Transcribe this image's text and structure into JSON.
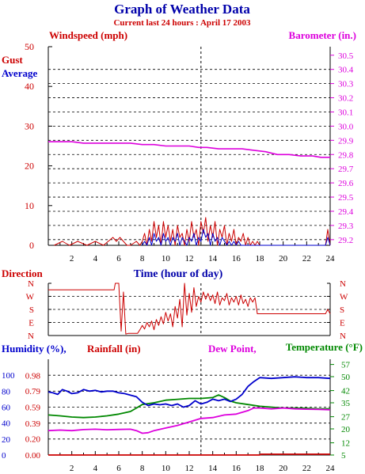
{
  "header": {
    "title": "Graph of Weather Data",
    "subtitle": "Current last 24 hours : April 17 2003"
  },
  "colors": {
    "title": "#0000aa",
    "subtitle": "#cc0000",
    "wind": "#cc0000",
    "avg": "#0000cc",
    "baro": "#dd00dd",
    "dir": "#cc0000",
    "humidity": "#0000cc",
    "rain": "#cc0000",
    "dew": "#dd00dd",
    "temp": "#008800",
    "grid": "#000000"
  },
  "chart_data": [
    {
      "id": "wind",
      "type": "line",
      "left_label": "Windspeed (mph)",
      "right_label": "Barometer (in.)",
      "legend": [
        "Gust",
        "Average"
      ],
      "xlabel": "Time (hour of day)",
      "x_ticks": [
        2,
        4,
        6,
        8,
        10,
        12,
        14,
        16,
        18,
        20,
        22,
        24
      ],
      "xlim": [
        0,
        24
      ],
      "y_left_ticks": [
        0,
        10,
        20,
        30,
        40,
        50
      ],
      "y_left_lim": [
        0,
        50
      ],
      "y_right_ticks": [
        "29.2",
        "29.3",
        "29.4",
        "29.5",
        "29.6",
        "29.7",
        "29.8",
        "29.9",
        "30.0",
        "30.1",
        "30.2",
        "30.3",
        "30.4",
        "30.5"
      ],
      "y_right_lim": [
        29.16,
        30.56
      ],
      "grid": true,
      "marker_x": 13,
      "series": [
        {
          "name": "Gust",
          "axis": "left",
          "x": [
            0.5,
            1.2,
            1.8,
            2.5,
            3.3,
            4.0,
            4.7,
            5.5,
            5.8,
            6.1,
            6.4,
            6.7,
            7.0,
            7.5,
            7.8,
            8.0,
            8.2,
            8.4,
            8.6,
            8.8,
            9.0,
            9.2,
            9.4,
            9.6,
            9.8,
            10.0,
            10.2,
            10.4,
            10.6,
            10.8,
            11.0,
            11.2,
            11.4,
            11.6,
            11.8,
            12.0,
            12.2,
            12.4,
            12.6,
            12.8,
            13.0,
            13.2,
            13.4,
            13.6,
            13.8,
            14.0,
            14.2,
            14.4,
            14.6,
            14.8,
            15.0,
            15.2,
            15.4,
            15.6,
            15.8,
            16.0,
            16.2,
            16.4,
            16.6,
            16.8,
            17.0,
            17.2,
            17.4,
            17.6,
            17.8,
            18.0,
            23.6,
            23.8,
            24.0
          ],
          "values": [
            0,
            1,
            0,
            1,
            0,
            1,
            0,
            2,
            1,
            2,
            1,
            0,
            0,
            1,
            0,
            1,
            3,
            0,
            4,
            1,
            6,
            2,
            5,
            0,
            6,
            2,
            5,
            1,
            4,
            0,
            5,
            2,
            3,
            0,
            4,
            1,
            6,
            2,
            4,
            0,
            6,
            3,
            7,
            1,
            5,
            2,
            6,
            0,
            4,
            2,
            5,
            0,
            3,
            1,
            4,
            0,
            2,
            1,
            3,
            0,
            2,
            0,
            1,
            0,
            1,
            0,
            0,
            4,
            0
          ]
        },
        {
          "name": "Average",
          "axis": "left",
          "x": [
            8.0,
            8.2,
            8.4,
            8.6,
            8.8,
            9.0,
            9.2,
            9.4,
            9.6,
            9.8,
            10.0,
            10.2,
            10.4,
            10.6,
            10.8,
            11.0,
            11.2,
            11.4,
            11.6,
            11.8,
            12.0,
            12.2,
            12.4,
            12.6,
            12.8,
            13.0,
            13.2,
            13.4,
            13.6,
            13.8,
            14.0,
            14.2,
            14.4,
            14.6,
            14.8,
            15.0,
            15.2,
            15.4,
            15.6,
            15.8,
            16.0,
            16.2,
            16.4,
            16.6,
            17.0,
            23.6,
            23.8,
            24.0
          ],
          "values": [
            0,
            1,
            0,
            2,
            0,
            3,
            1,
            2,
            0,
            3,
            1,
            2,
            0,
            2,
            1,
            3,
            0,
            2,
            1,
            0,
            2,
            1,
            3,
            0,
            2,
            1,
            4,
            2,
            3,
            0,
            3,
            1,
            2,
            0,
            2,
            1,
            0,
            1,
            0,
            1,
            0,
            1,
            0,
            0,
            0,
            0,
            2,
            0
          ]
        },
        {
          "name": "Barometer",
          "axis": "right",
          "x": [
            0,
            1,
            2,
            3,
            4,
            5,
            6,
            7,
            8,
            9,
            10,
            11,
            12,
            12.8,
            13.5,
            14.5,
            15.5,
            16.5,
            17.5,
            18.5,
            19.5,
            20.5,
            21.5,
            22.5,
            23.2,
            24
          ],
          "values": [
            29.89,
            29.89,
            29.89,
            29.88,
            29.88,
            29.88,
            29.88,
            29.88,
            29.87,
            29.87,
            29.86,
            29.86,
            29.86,
            29.85,
            29.85,
            29.84,
            29.84,
            29.84,
            29.83,
            29.82,
            29.8,
            29.8,
            29.79,
            29.79,
            29.78,
            29.78
          ]
        }
      ]
    },
    {
      "id": "direction",
      "type": "line",
      "left_label": "Direction",
      "x_ticks": [
        2,
        4,
        6,
        8,
        10,
        12,
        14,
        16,
        18,
        20,
        22,
        24
      ],
      "xlim": [
        0,
        24
      ],
      "y_ticks": [
        "N",
        "W",
        "S",
        "E",
        "N"
      ],
      "y_values": [
        360,
        270,
        180,
        90,
        0
      ],
      "grid": true,
      "marker_x": 13,
      "series": [
        {
          "name": "Direction",
          "x": [
            0,
            5.6,
            5.7,
            6.0,
            6.2,
            6.4,
            6.6,
            6.8,
            7.0,
            7.4,
            7.6,
            7.8,
            8.0,
            8.2,
            8.4,
            8.6,
            8.8,
            9.0,
            9.2,
            9.4,
            9.6,
            9.8,
            10.0,
            10.2,
            10.4,
            10.6,
            10.8,
            11.0,
            11.2,
            11.4,
            11.6,
            11.8,
            12.0,
            12.2,
            12.4,
            12.6,
            12.8,
            13.0,
            13.2,
            13.4,
            13.6,
            13.8,
            14.0,
            14.2,
            14.4,
            14.6,
            14.8,
            15.0,
            15.2,
            15.4,
            15.6,
            15.8,
            16.0,
            16.2,
            16.4,
            16.6,
            16.8,
            17.0,
            17.2,
            17.4,
            17.6,
            17.8,
            18.0,
            23.6,
            23.8,
            24.0
          ],
          "values": [
            315,
            315,
            360,
            360,
            30,
            300,
            10,
            15,
            15,
            15,
            15,
            40,
            70,
            45,
            90,
            60,
            100,
            40,
            110,
            70,
            130,
            80,
            160,
            100,
            150,
            60,
            200,
            120,
            250,
            60,
            360,
            140,
            290,
            160,
            330,
            200,
            270,
            230,
            300,
            250,
            290,
            240,
            280,
            220,
            300,
            210,
            260,
            240,
            290,
            210,
            260,
            230,
            270,
            210,
            280,
            220,
            250,
            200,
            260,
            230,
            260,
            150,
            150,
            150,
            180,
            150
          ]
        }
      ]
    },
    {
      "id": "humidity",
      "type": "line",
      "left_label": "Humidity (%),",
      "rain_label": "Rainfall (in)",
      "dew_label": "Dew Point,",
      "temp_label": "Temperature (°F)",
      "x_ticks": [
        2,
        4,
        6,
        8,
        10,
        12,
        14,
        16,
        18,
        20,
        22,
        24
      ],
      "xlim": [
        0,
        24
      ],
      "hum_ticks": [
        0,
        20,
        40,
        60,
        80,
        100
      ],
      "hum_lim": [
        0,
        120
      ],
      "rain_ticks": [
        "0.00",
        "0.20",
        "0.39",
        "0.59",
        "0.79",
        "0.98"
      ],
      "rain_lim": [
        0,
        1.18
      ],
      "temp_ticks": [
        5,
        12,
        20,
        27,
        35,
        42,
        50,
        57
      ],
      "temp_lim": [
        5,
        60
      ],
      "grid": true,
      "marker_x": 13,
      "series": [
        {
          "name": "Humidity",
          "axis": "hum",
          "x": [
            0,
            0.4,
            0.8,
            1.2,
            1.6,
            2.0,
            2.5,
            3.0,
            3.5,
            4.0,
            4.5,
            5.0,
            5.5,
            6.0,
            6.5,
            7.0,
            7.5,
            8.0,
            8.5,
            9.0,
            9.5,
            10.0,
            10.5,
            11.0,
            11.5,
            12.0,
            12.5,
            13.0,
            13.5,
            14.0,
            14.5,
            15.0,
            15.5,
            16.0,
            16.5,
            17.0,
            17.5,
            18.0,
            19.0,
            20.0,
            21.0,
            22.0,
            23.0,
            24.0
          ],
          "values": [
            79,
            78,
            76,
            82,
            80,
            77,
            78,
            82,
            80,
            81,
            79,
            80,
            80,
            78,
            77,
            75,
            73,
            66,
            62,
            64,
            63,
            64,
            62,
            64,
            60,
            62,
            68,
            64,
            66,
            70,
            68,
            70,
            67,
            70,
            76,
            86,
            92,
            97,
            96,
            97,
            98,
            97,
            97,
            96
          ]
        },
        {
          "name": "Rainfall",
          "axis": "rain",
          "x": [
            0,
            18,
            18.1,
            24
          ],
          "values": [
            0,
            0,
            0.01,
            0.01
          ]
        },
        {
          "name": "Dew Point",
          "axis": "temp",
          "x": [
            0,
            1,
            2,
            3,
            4,
            5,
            6,
            7,
            7.5,
            8,
            8.5,
            9,
            10,
            11,
            12,
            13,
            14,
            15,
            16,
            17,
            17.5,
            18,
            19,
            20,
            21,
            22,
            23,
            24
          ],
          "values": [
            19,
            19.3,
            19,
            19.6,
            19.8,
            19.5,
            19.7,
            19.8,
            19,
            17.5,
            17.8,
            19,
            20.5,
            22,
            24,
            26,
            26.5,
            28,
            28.5,
            30.5,
            32,
            32,
            31.5,
            32,
            31.5,
            31.3,
            31.2,
            31
          ]
        },
        {
          "name": "Temperature",
          "axis": "temp",
          "x": [
            0,
            1,
            2,
            3,
            4,
            5,
            6,
            7,
            7.5,
            8,
            9,
            10,
            11,
            12,
            13,
            14,
            14.5,
            15,
            15.5,
            16,
            17,
            18,
            19,
            20,
            21,
            22,
            23,
            24
          ],
          "values": [
            28,
            27.5,
            26.8,
            26.5,
            26.8,
            27.5,
            28.5,
            30,
            32,
            34,
            35,
            36.5,
            37,
            37.5,
            37.5,
            38,
            39.5,
            38,
            36,
            35,
            34,
            33,
            32.5,
            32,
            32,
            31.8,
            31.5,
            31.5
          ]
        }
      ]
    }
  ]
}
